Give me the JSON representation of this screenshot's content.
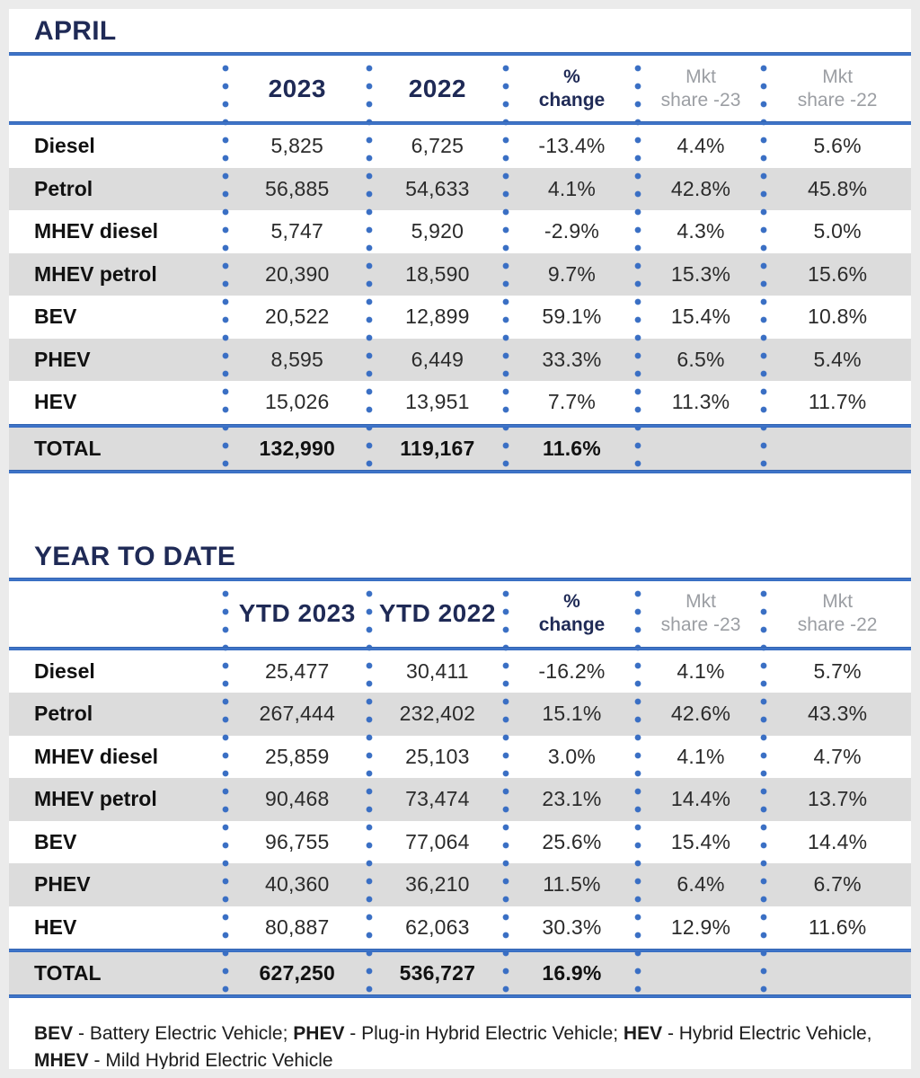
{
  "colors": {
    "navy_text": "#1f2a56",
    "blue_line": "#3a70c4",
    "dot_blue": "#3a6fc4",
    "header_gray": "#9b9ea3",
    "stripe_gray": "#dcdcdc",
    "page_background": "#ebebeb"
  },
  "april_table": {
    "title": "APRIL",
    "header": {
      "col_2023": "2023",
      "col_2022": "2022",
      "pct_top": "%",
      "pct_bottom": "change",
      "mkt23_top": "Mkt",
      "mkt23_bottom": "share -23",
      "mkt22_top": "Mkt",
      "mkt22_bottom": "share -22"
    },
    "rows": [
      {
        "label": "Diesel",
        "v2023": "5,825",
        "v2022": "6,725",
        "change": "-13.4%",
        "share23": "4.4%",
        "share22": "5.6%"
      },
      {
        "label": "Petrol",
        "v2023": "56,885",
        "v2022": "54,633",
        "change": "4.1%",
        "share23": "42.8%",
        "share22": "45.8%"
      },
      {
        "label": "MHEV diesel",
        "v2023": "5,747",
        "v2022": "5,920",
        "change": "-2.9%",
        "share23": "4.3%",
        "share22": "5.0%"
      },
      {
        "label": "MHEV petrol",
        "v2023": "20,390",
        "v2022": "18,590",
        "change": "9.7%",
        "share23": "15.3%",
        "share22": "15.6%"
      },
      {
        "label": "BEV",
        "v2023": "20,522",
        "v2022": "12,899",
        "change": "59.1%",
        "share23": "15.4%",
        "share22": "10.8%"
      },
      {
        "label": "PHEV",
        "v2023": "8,595",
        "v2022": "6,449",
        "change": "33.3%",
        "share23": "6.5%",
        "share22": "5.4%"
      },
      {
        "label": "HEV",
        "v2023": "15,026",
        "v2022": "13,951",
        "change": "7.7%",
        "share23": "11.3%",
        "share22": "11.7%"
      }
    ],
    "total": {
      "label": "TOTAL",
      "v2023": "132,990",
      "v2022": "119,167",
      "change": "11.6%",
      "share23": "",
      "share22": ""
    }
  },
  "ytd_table": {
    "title": "YEAR TO DATE",
    "header": {
      "col_2023": "YTD 2023",
      "col_2022": "YTD 2022",
      "pct_top": "%",
      "pct_bottom": "change",
      "mkt23_top": "Mkt",
      "mkt23_bottom": "share -23",
      "mkt22_top": "Mkt",
      "mkt22_bottom": "share -22"
    },
    "rows": [
      {
        "label": "Diesel",
        "v2023": "25,477",
        "v2022": "30,411",
        "change": "-16.2%",
        "share23": "4.1%",
        "share22": "5.7%"
      },
      {
        "label": "Petrol",
        "v2023": "267,444",
        "v2022": "232,402",
        "change": "15.1%",
        "share23": "42.6%",
        "share22": "43.3%"
      },
      {
        "label": "MHEV diesel",
        "v2023": "25,859",
        "v2022": "25,103",
        "change": "3.0%",
        "share23": "4.1%",
        "share22": "4.7%"
      },
      {
        "label": "MHEV petrol",
        "v2023": "90,468",
        "v2022": "73,474",
        "change": "23.1%",
        "share23": "14.4%",
        "share22": "13.7%"
      },
      {
        "label": "BEV",
        "v2023": "96,755",
        "v2022": "77,064",
        "change": "25.6%",
        "share23": "15.4%",
        "share22": "14.4%"
      },
      {
        "label": "PHEV",
        "v2023": "40,360",
        "v2022": "36,210",
        "change": "11.5%",
        "share23": "6.4%",
        "share22": "6.7%"
      },
      {
        "label": "HEV",
        "v2023": "80,887",
        "v2022": "62,063",
        "change": "30.3%",
        "share23": "12.9%",
        "share22": "11.6%"
      }
    ],
    "total": {
      "label": "TOTAL",
      "v2023": "627,250",
      "v2022": "536,727",
      "change": "16.9%",
      "share23": "",
      "share22": ""
    }
  },
  "footnote": {
    "bev_abbr": "BEV",
    "bev_text": " - Battery Electric Vehicle; ",
    "phev_abbr": "PHEV",
    "phev_text": " - Plug-in Hybrid Electric Vehicle; ",
    "hev_abbr": "HEV",
    "hev_text": " - Hybrid Electric Vehicle,",
    "mhev_abbr": "MHEV",
    "mhev_text": " - Mild Hybrid Electric Vehicle"
  }
}
